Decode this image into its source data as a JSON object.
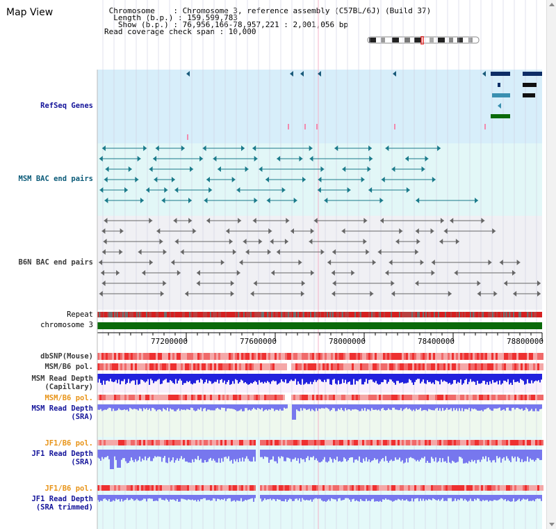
{
  "title": "Map View",
  "header": {
    "chromosome": " Chromosome    : Chromosome 3, reference assembly (C57BL/6J) (Build 37)",
    "length": "  Length (b.p.) : 159,599,783",
    "show": "   Show (b.p.) : 76,956,166-78,957,221 : 2,001,056 bp",
    "coverage": "Read coverage check span : 10,000"
  },
  "tracks": {
    "refseq": "RefSeq Genes",
    "msm_bac": "MSM BAC end pairs",
    "b6n_bac": "B6N BAC end pairs",
    "repeat": "Repeat",
    "chromosome": "chromosome 3",
    "dbsnp": "dbSNP(Mouse)",
    "msm_b6_pol_1": "MSM/B6 pol.",
    "msm_read_depth_cap": "MSM Read Depth\n(Capillary)",
    "msm_b6_pol_2": "MSM/B6 pol.",
    "msm_read_depth_sra": "MSM Read Depth\n(SRA)",
    "jf1_b6_pol_1": "JF1/B6 pol.",
    "jf1_read_depth_sra": "JF1 Read Depth\n(SRA)",
    "jf1_b6_pol_2": "JF1/B6 pol.",
    "jf1_read_depth_trim": "JF1 Read Depth\n(SRA trimmed)"
  },
  "axis": {
    "ticks": [
      "77200000",
      "77600000",
      "78000000",
      "78400000",
      "78800000"
    ]
  },
  "colors": {
    "refseq_bg": "#d7eefa",
    "msm_bac_bg": "#e2f7f7",
    "b6n_bac_bg": "#f0f0f4",
    "chromosome_bar": "#0a6a0a",
    "read_depth": "#2222dd",
    "read_depth_light": "#7777ee",
    "pol_red": "#ee3030",
    "pol_pink": "#f4a8a8"
  }
}
